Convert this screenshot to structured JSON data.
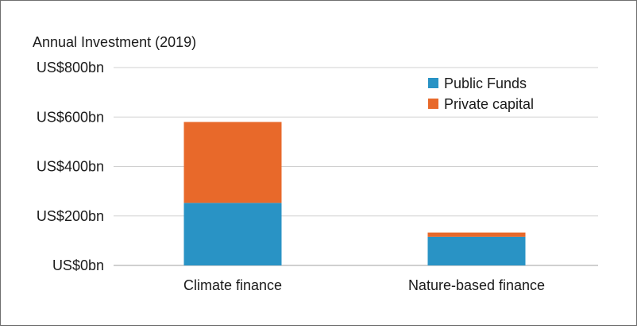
{
  "chart_data": {
    "type": "bar",
    "stacked": true,
    "ylabel": "Annual Investment (2019)",
    "ylim": [
      0,
      800
    ],
    "yticks": [
      {
        "value": 0,
        "label": "US$0bn"
      },
      {
        "value": 200,
        "label": "US$200bn"
      },
      {
        "value": 400,
        "label": "US$400bn"
      },
      {
        "value": 600,
        "label": "US$600bn"
      },
      {
        "value": 800,
        "label": "US$800bn"
      }
    ],
    "categories": [
      "Climate finance",
      "Nature-based finance"
    ],
    "series": [
      {
        "name": "Public Funds",
        "color": "#2993c5",
        "values": [
          253,
          116
        ]
      },
      {
        "name": "Private capital",
        "color": "#e8692a",
        "values": [
          327,
          17
        ]
      }
    ],
    "grid": true,
    "legend": "top-right"
  }
}
